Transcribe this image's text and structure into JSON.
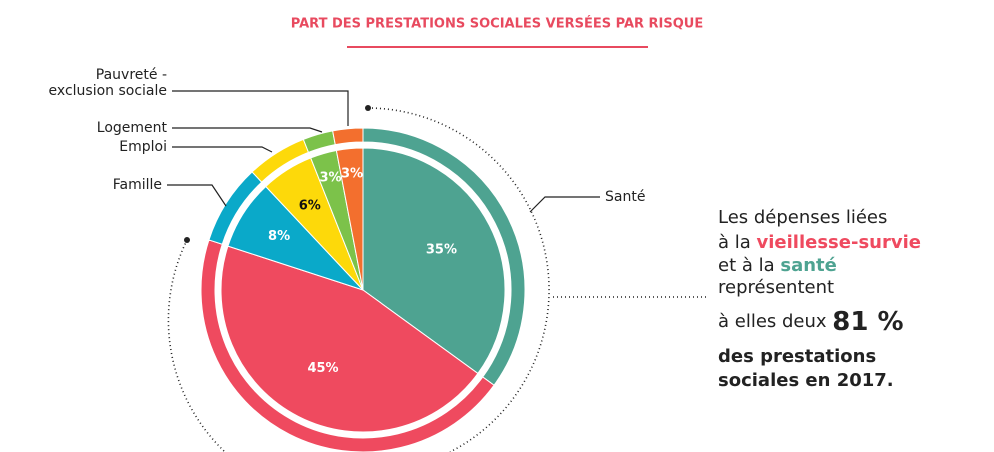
{
  "chart_data": {
    "type": "pie",
    "title": "PART DES PRESTATIONS SOCIALES VERSÉES PAR RISQUE",
    "categories": [
      "Santé",
      null,
      "Famille",
      "Emploi",
      "Logement",
      "Pauvreté - exclusion sociale"
    ],
    "values": [
      35,
      45,
      8,
      6,
      3,
      3
    ],
    "value_labels": [
      "35%",
      "45%",
      "8%",
      "6%",
      "3%",
      "3%"
    ],
    "colors": [
      "#4ea391",
      "#ef4a5f",
      "#0aa9c9",
      "#fdd90a",
      "#7cc24a",
      "#f36f2e"
    ],
    "annotation": [
      [
        "Les dépenses liées"
      ],
      [
        "à la ",
        "vieillesse-survie"
      ],
      [
        "et à la ",
        "santé"
      ],
      [
        "représentent"
      ],
      [
        "à elles deux ",
        "81 %"
      ],
      [
        "des prestations"
      ],
      [
        "sociales en 2017."
      ]
    ]
  }
}
